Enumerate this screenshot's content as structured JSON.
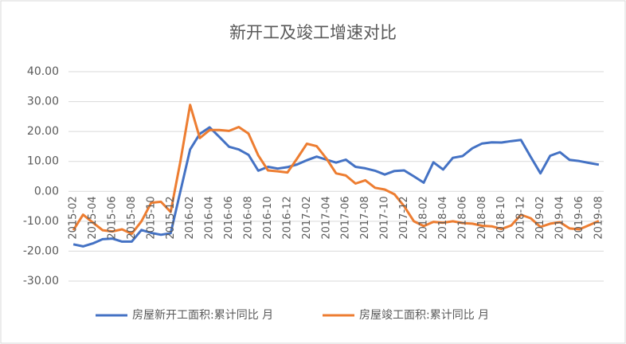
{
  "chart_data": {
    "type": "line",
    "title": "新开工及竣工增速对比",
    "categories": [
      "2015-02",
      null,
      "2015-04",
      null,
      "2015-06",
      null,
      "2015-08",
      null,
      "2015-10",
      null,
      "2015-12",
      null,
      "2016-02",
      null,
      "2016-04",
      null,
      "2016-06",
      null,
      "2016-08",
      null,
      "2016-10",
      null,
      "2016-12",
      null,
      "2017-02",
      null,
      "2017-04",
      null,
      "2017-06",
      null,
      "2017-08",
      null,
      "2017-10",
      null,
      "2017-12",
      null,
      "2018-02",
      null,
      "2018-04",
      null,
      "2018-06",
      null,
      "2018-08",
      null,
      "2018-10",
      null,
      "2018-12",
      null,
      "2019-02",
      null,
      "2019-04",
      null,
      "2019-06",
      null,
      "2019-08"
    ],
    "series": [
      {
        "name": "房屋新开工面积:累计同比 月",
        "color": "#4472c4",
        "values": [
          -17.7,
          -18.4,
          -17.4,
          -16.0,
          -15.8,
          -16.8,
          -16.8,
          -12.9,
          -13.9,
          -14.5,
          -14.0,
          0,
          14.0,
          19.2,
          21.4,
          18.2,
          14.9,
          14.0,
          12.2,
          6.9,
          8.2,
          7.6,
          8.1,
          9,
          10.4,
          11.6,
          10.6,
          9.6,
          10.6,
          8.2,
          7.7,
          6.9,
          5.6,
          6.8,
          7.0,
          5,
          2.9,
          9.7,
          7.3,
          11.2,
          11.8,
          14.4,
          16.0,
          16.4,
          16.3,
          16.8,
          17.2,
          11.5,
          6.0,
          11.9,
          13.1,
          10.5,
          10.1,
          9.5,
          8.9
        ]
      },
      {
        "name": "房屋竣工面积:累计同比 月",
        "color": "#ed7d31",
        "values": [
          -13,
          -7.8,
          -10.4,
          -13,
          -13.4,
          -12.7,
          -14.2,
          -10,
          -3.8,
          -3.5,
          -6.9,
          10,
          28.9,
          17.8,
          20.5,
          20.5,
          20.2,
          21.5,
          19.3,
          12,
          7,
          6.7,
          6.3,
          11,
          15.9,
          15.1,
          11,
          6,
          5.3,
          2.6,
          3.7,
          1.2,
          0.6,
          -1,
          -5,
          -10,
          -11.6,
          -10.2,
          -10.5,
          -10,
          -10.6,
          -10.8,
          -11.5,
          -11.7,
          -12.6,
          -11.4,
          -7.8,
          -9,
          -11.9,
          -10.8,
          -10.3,
          -12.4,
          -12.7,
          -11.3,
          -9.9
        ]
      }
    ],
    "ylim": [
      -30,
      40
    ],
    "yticks": [
      {
        "value": -30,
        "label": "-30.00"
      },
      {
        "value": -20,
        "label": "-20.00"
      },
      {
        "value": -10,
        "label": "-10.00"
      },
      {
        "value": 0,
        "label": "0.00"
      },
      {
        "value": 10,
        "label": "10.00"
      },
      {
        "value": 20,
        "label": "20.00"
      },
      {
        "value": 30,
        "label": "30.00"
      },
      {
        "value": 40,
        "label": "40.00"
      }
    ],
    "grid": true
  }
}
